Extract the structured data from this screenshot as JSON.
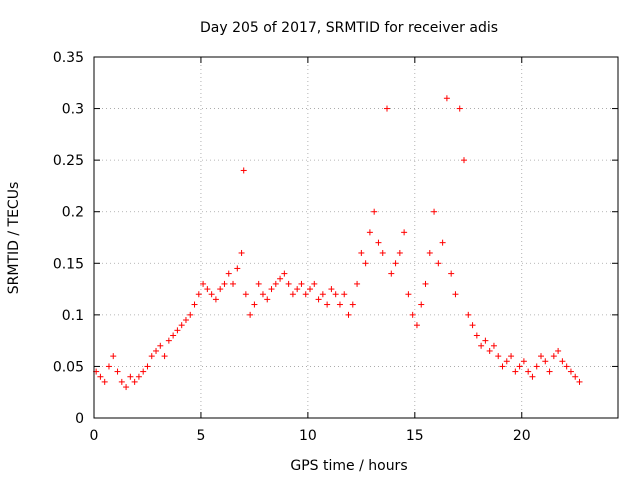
{
  "chart_data": {
    "type": "scatter",
    "title": "Day 205 of 2017, SRMTID for receiver adis",
    "xlabel": "GPS time / hours",
    "ylabel": "SRMTID / TECUs",
    "xlim": [
      0,
      24.5
    ],
    "ylim": [
      0,
      0.35
    ],
    "xticks": [
      0,
      5,
      10,
      15,
      20
    ],
    "xtick_labels": [
      "0",
      "5",
      "10",
      "15",
      "20"
    ],
    "yticks": [
      0,
      0.05,
      0.1,
      0.15,
      0.2,
      0.25,
      0.3,
      0.35
    ],
    "ytick_labels": [
      "0",
      "0.05",
      "0.1",
      "0.15",
      "0.2",
      "0.25",
      "0.3",
      "0.35"
    ],
    "grid": true,
    "marker": "+",
    "point_color": "#ff0000",
    "series": [
      {
        "name": "SRMTID",
        "x": [
          0.1,
          0.3,
          0.5,
          0.7,
          0.9,
          1.1,
          1.3,
          1.5,
          1.7,
          1.9,
          2.1,
          2.3,
          2.5,
          2.7,
          2.9,
          3.1,
          3.3,
          3.5,
          3.7,
          3.9,
          4.1,
          4.3,
          4.5,
          4.7,
          4.9,
          5.1,
          5.3,
          5.5,
          5.7,
          5.9,
          6.1,
          6.3,
          6.5,
          6.7,
          6.9,
          7.0,
          7.1,
          7.3,
          7.5,
          7.7,
          7.9,
          8.1,
          8.3,
          8.5,
          8.7,
          8.9,
          9.1,
          9.3,
          9.5,
          9.7,
          9.9,
          10.1,
          10.3,
          10.5,
          10.7,
          10.9,
          11.1,
          11.3,
          11.5,
          11.7,
          11.9,
          12.1,
          12.3,
          12.5,
          12.7,
          12.9,
          13.1,
          13.3,
          13.5,
          13.7,
          13.9,
          14.1,
          14.3,
          14.5,
          14.7,
          14.9,
          15.1,
          15.3,
          15.5,
          15.7,
          15.9,
          16.1,
          16.3,
          16.5,
          16.7,
          16.9,
          17.1,
          17.3,
          17.5,
          17.7,
          17.9,
          18.1,
          18.3,
          18.5,
          18.7,
          18.9,
          19.1,
          19.3,
          19.5,
          19.7,
          19.9,
          20.1,
          20.3,
          20.5,
          20.7,
          20.9,
          21.1,
          21.3,
          21.5,
          21.7,
          21.9,
          22.1,
          22.3,
          22.5,
          22.7
        ],
        "y": [
          0.045,
          0.04,
          0.035,
          0.05,
          0.06,
          0.045,
          0.035,
          0.03,
          0.04,
          0.035,
          0.04,
          0.045,
          0.05,
          0.06,
          0.065,
          0.07,
          0.06,
          0.075,
          0.08,
          0.085,
          0.09,
          0.095,
          0.1,
          0.11,
          0.12,
          0.13,
          0.125,
          0.12,
          0.115,
          0.125,
          0.13,
          0.14,
          0.13,
          0.145,
          0.16,
          0.24,
          0.12,
          0.1,
          0.11,
          0.13,
          0.12,
          0.115,
          0.125,
          0.13,
          0.135,
          0.14,
          0.13,
          0.12,
          0.125,
          0.13,
          0.12,
          0.125,
          0.13,
          0.115,
          0.12,
          0.11,
          0.125,
          0.12,
          0.11,
          0.12,
          0.1,
          0.11,
          0.13,
          0.16,
          0.15,
          0.18,
          0.2,
          0.17,
          0.16,
          0.3,
          0.14,
          0.15,
          0.16,
          0.18,
          0.12,
          0.1,
          0.09,
          0.11,
          0.13,
          0.16,
          0.2,
          0.15,
          0.17,
          0.31,
          0.14,
          0.12,
          0.3,
          0.25,
          0.1,
          0.09,
          0.08,
          0.07,
          0.075,
          0.065,
          0.07,
          0.06,
          0.05,
          0.055,
          0.06,
          0.045,
          0.05,
          0.055,
          0.045,
          0.04,
          0.05,
          0.06,
          0.055,
          0.045,
          0.06,
          0.065,
          0.055,
          0.05,
          0.045,
          0.04,
          0.035
        ]
      }
    ]
  }
}
